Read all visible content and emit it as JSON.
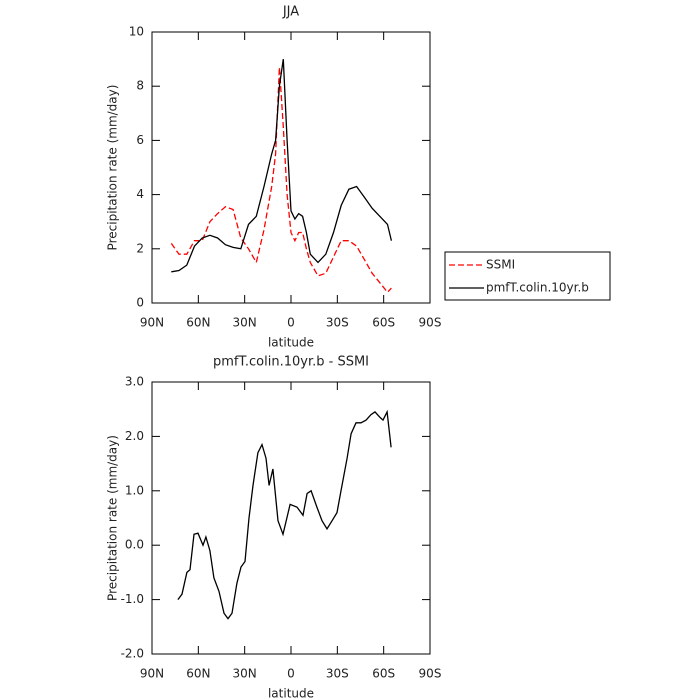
{
  "chart_data": [
    {
      "type": "line",
      "title": "JJA",
      "xlabel": "latitude",
      "ylabel": "Precipitation rate (mm/day)",
      "x": [
        77.5,
        72.5,
        67.5,
        62.5,
        57.5,
        52.5,
        47.5,
        42.5,
        37.5,
        32.5,
        27.5,
        22.5,
        17.5,
        12.5,
        10,
        7.5,
        5,
        2.5,
        0,
        -2.5,
        -5,
        -7.5,
        -10,
        -12.5,
        -17.5,
        -22.5,
        -27.5,
        -32.5,
        -37.5,
        -42.5,
        -47.5,
        -52.5,
        -57.5,
        -62.5,
        -65
      ],
      "series": [
        {
          "name": "SSMI",
          "color": "#ff0000",
          "line_style": "dashed",
          "values": [
            2.2,
            1.8,
            1.8,
            2.3,
            2.3,
            3.0,
            3.3,
            3.55,
            3.45,
            2.4,
            2.0,
            1.5,
            2.7,
            4.3,
            5.5,
            8.7,
            6.5,
            4.0,
            2.6,
            2.3,
            2.6,
            2.6,
            2.0,
            1.5,
            1.0,
            1.1,
            1.7,
            2.3,
            2.3,
            2.1,
            1.6,
            1.1,
            0.75,
            0.4,
            0.55
          ]
        },
        {
          "name": "pmfT.colin.10yr.b",
          "color": "#000000",
          "line_style": "solid",
          "values": [
            1.15,
            1.2,
            1.4,
            2.1,
            2.4,
            2.5,
            2.4,
            2.15,
            2.05,
            2.0,
            2.9,
            3.2,
            4.3,
            5.5,
            6.0,
            8.0,
            9.0,
            6.0,
            3.4,
            3.1,
            3.3,
            3.2,
            2.6,
            1.8,
            1.5,
            1.8,
            2.6,
            3.6,
            4.2,
            4.3,
            3.9,
            3.5,
            3.2,
            2.9,
            2.3
          ]
        }
      ],
      "xlim": [
        90,
        -90
      ],
      "xticks": [
        {
          "value": 90,
          "label": "90N"
        },
        {
          "value": 60,
          "label": "60N"
        },
        {
          "value": 30,
          "label": "30N"
        },
        0,
        {
          "value": -30,
          "label": "30S"
        },
        {
          "value": -60,
          "label": "60S"
        },
        {
          "value": -90,
          "label": "90S"
        }
      ],
      "ylim": [
        0,
        10
      ],
      "yticks": [
        0,
        2,
        4,
        6,
        8,
        10
      ],
      "legend": "outside right"
    },
    {
      "type": "line",
      "title": "pmfT.colin.10yr.b - SSMI",
      "xlabel": "latitude",
      "ylabel": "Precipitation rate (mm/day)",
      "x": [
        73.2,
        70.6,
        67.4,
        65.4,
        62.8,
        60.2,
        57.0,
        55.1,
        52.5,
        49.9,
        46.6,
        43.4,
        40.8,
        38.2,
        35.0,
        32.4,
        29.8,
        27.2,
        24.6,
        21.4,
        18.8,
        16.2,
        14.2,
        11.7,
        8.4,
        5.2,
        0.6,
        -3.9,
        -7.8,
        -10.4,
        -13.0,
        -16.8,
        -20.1,
        -23.3,
        -26.6,
        -29.8,
        -32.4,
        -36.3,
        -38.9,
        -42.1,
        -45.3,
        -48.6,
        -51.8,
        -54.4,
        -57.6,
        -59.6,
        -62.2,
        -64.8
      ],
      "series": [
        {
          "name": "pmfT.colin.10yr.b - SSMI",
          "color": "#000000",
          "line_style": "solid",
          "values": [
            -1.0,
            -0.9,
            -0.5,
            -0.45,
            0.2,
            0.22,
            0.0,
            0.15,
            -0.1,
            -0.6,
            -0.85,
            -1.25,
            -1.35,
            -1.25,
            -0.7,
            -0.4,
            -0.3,
            0.5,
            1.1,
            1.7,
            1.85,
            1.6,
            1.1,
            1.4,
            0.45,
            0.2,
            0.75,
            0.7,
            0.55,
            0.95,
            1.0,
            0.7,
            0.45,
            0.3,
            0.45,
            0.6,
            1.0,
            1.6,
            2.05,
            2.25,
            2.25,
            2.3,
            2.4,
            2.45,
            2.35,
            2.3,
            2.45,
            1.8
          ]
        }
      ],
      "xlim": [
        90,
        -90
      ],
      "xticks": [
        {
          "value": 90,
          "label": "90N"
        },
        {
          "value": 60,
          "label": "60N"
        },
        {
          "value": 30,
          "label": "30N"
        },
        0,
        {
          "value": -30,
          "label": "30S"
        },
        {
          "value": -60,
          "label": "60S"
        },
        {
          "value": -90,
          "label": "90S"
        }
      ],
      "ylim": [
        -2,
        3
      ],
      "yticks": [
        {
          "value": -2,
          "label": "-2.0"
        },
        {
          "value": -1,
          "label": "-1.0"
        },
        {
          "value": 0,
          "label": "0.0"
        },
        {
          "value": 1,
          "label": "1.0"
        },
        {
          "value": 2,
          "label": "2.0"
        },
        {
          "value": 3,
          "label": "3.0"
        }
      ]
    }
  ]
}
